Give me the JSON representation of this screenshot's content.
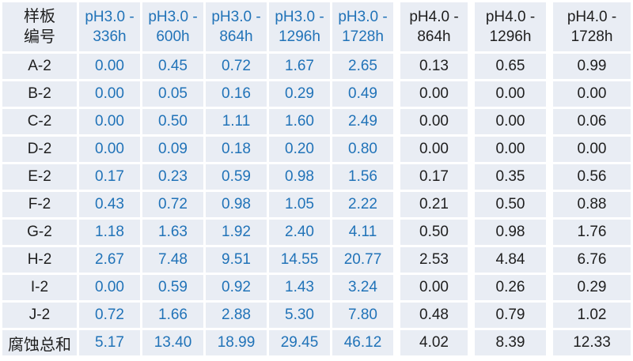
{
  "colors": {
    "cell_background": "#e9edf4",
    "gridline": "#ffffff",
    "ph3_text_blue": "#2173b8",
    "ph4_text_black": "#1f1f1f",
    "row_label_text": "#1f1f1f"
  },
  "chart_data": {
    "type": "table",
    "corner_header_lines": [
      "样板",
      "编号"
    ],
    "columns": [
      {
        "label": "pH3.0 - 336h",
        "group": "pH3.0"
      },
      {
        "label": "pH3.0 - 600h",
        "group": "pH3.0"
      },
      {
        "label": "pH3.0 - 864h",
        "group": "pH3.0"
      },
      {
        "label": "pH3.0 - 1296h",
        "group": "pH3.0"
      },
      {
        "label": "pH3.0 - 1728h",
        "group": "pH3.0"
      },
      {
        "label": "pH4.0 - 864h",
        "group": "pH4.0"
      },
      {
        "label": "pH4.0 - 1296h",
        "group": "pH4.0"
      },
      {
        "label": "pH4.0 - 1728h",
        "group": "pH4.0"
      }
    ],
    "rows": [
      {
        "label": "A-2",
        "values": [
          "0.00",
          "0.45",
          "0.72",
          "1.67",
          "2.65",
          "0.13",
          "0.65",
          "0.99"
        ]
      },
      {
        "label": "B-2",
        "values": [
          "0.00",
          "0.05",
          "0.16",
          "0.29",
          "0.49",
          "0.00",
          "0.00",
          "0.00"
        ]
      },
      {
        "label": "C-2",
        "values": [
          "0.00",
          "0.50",
          "1.11",
          "1.60",
          "2.49",
          "0.00",
          "0.00",
          "0.06"
        ]
      },
      {
        "label": "D-2",
        "values": [
          "0.00",
          "0.09",
          "0.18",
          "0.20",
          "0.80",
          "0.00",
          "0.00",
          "0.00"
        ]
      },
      {
        "label": "E-2",
        "values": [
          "0.17",
          "0.23",
          "0.59",
          "0.98",
          "1.56",
          "0.17",
          "0.35",
          "0.56"
        ]
      },
      {
        "label": "F-2",
        "values": [
          "0.43",
          "0.72",
          "0.98",
          "1.05",
          "2.22",
          "0.21",
          "0.50",
          "0.88"
        ]
      },
      {
        "label": "G-2",
        "values": [
          "1.18",
          "1.63",
          "1.92",
          "2.40",
          "4.11",
          "0.50",
          "0.98",
          "1.76"
        ]
      },
      {
        "label": "H-2",
        "values": [
          "2.67",
          "7.48",
          "9.51",
          "14.55",
          "20.77",
          "2.53",
          "4.84",
          "6.76"
        ]
      },
      {
        "label": "I-2",
        "values": [
          "0.00",
          "0.59",
          "0.92",
          "1.43",
          "3.24",
          "0.00",
          "0.26",
          "0.29"
        ]
      },
      {
        "label": "J-2",
        "values": [
          "0.72",
          "1.66",
          "2.88",
          "5.30",
          "7.80",
          "0.48",
          "0.79",
          "1.02"
        ]
      },
      {
        "label": "腐蚀总和",
        "values": [
          "5.17",
          "13.40",
          "18.99",
          "29.45",
          "46.12",
          "4.02",
          "8.39",
          "12.33"
        ],
        "is_total": true
      }
    ]
  }
}
